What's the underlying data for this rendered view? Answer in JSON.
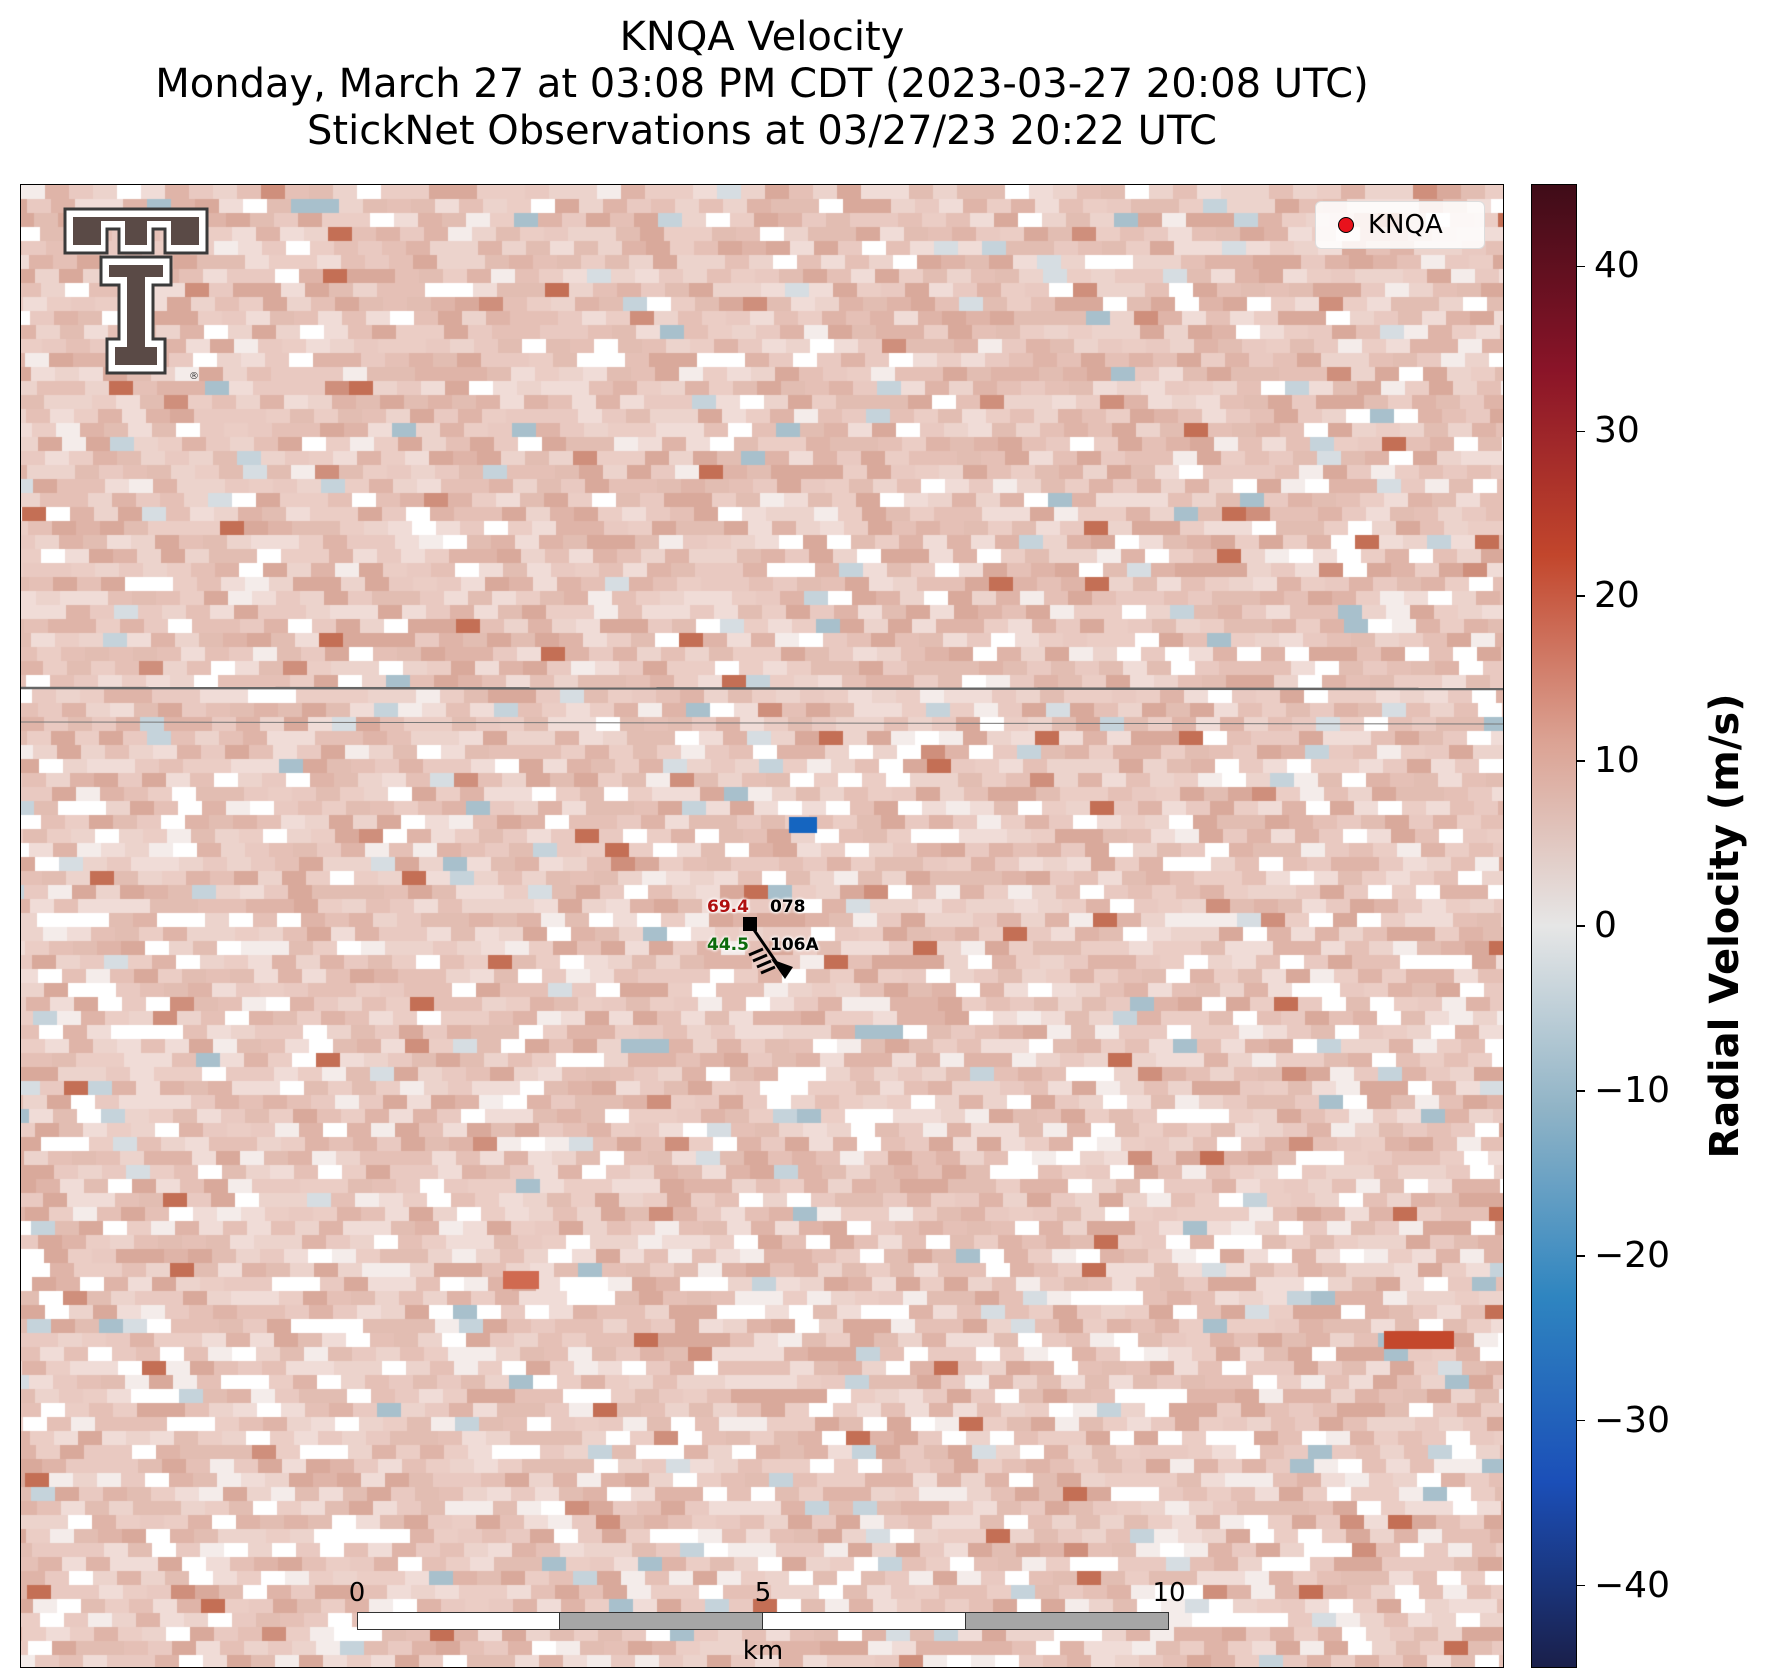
{
  "title": {
    "line1": "KNQA Velocity",
    "line2": "Monday, March 27 at 03:08 PM CDT (2023-03-27 20:08 UTC)",
    "line3": "StickNet Observations at 03/27/23 20:22 UTC"
  },
  "legend": {
    "label": "KNQA",
    "marker_color": "#e8121c"
  },
  "stations": [
    {
      "id": "078",
      "temperature": "69.4",
      "temp_color": "#b01010"
    },
    {
      "id": "106A",
      "dewpoint": "44.5",
      "dew_color": "#0b6b0b"
    }
  ],
  "colorbar": {
    "title": "Radial Velocity (m/s)",
    "ticks": [
      "40",
      "30",
      "20",
      "10",
      "0",
      "−10",
      "−20",
      "−30",
      "−40"
    ],
    "range": [
      -45,
      45
    ],
    "colors": [
      "#1a1f4a",
      "#1b4fb8",
      "#2f85c0",
      "#8fb3c6",
      "#e6e6e6",
      "#dba293",
      "#c2462c",
      "#8a1428",
      "#3f0c18"
    ]
  },
  "scalebar": {
    "ticks": [
      "0",
      "5",
      "10"
    ],
    "unit": "km"
  },
  "map_data": {
    "dominant_velocity_mps": 4,
    "noted_features": [
      {
        "type": "range-ring",
        "style": "dark gray line"
      },
      {
        "type": "range-ring",
        "style": "thin gray line"
      }
    ]
  },
  "logo": {
    "icon": "double-t-logo-icon"
  }
}
